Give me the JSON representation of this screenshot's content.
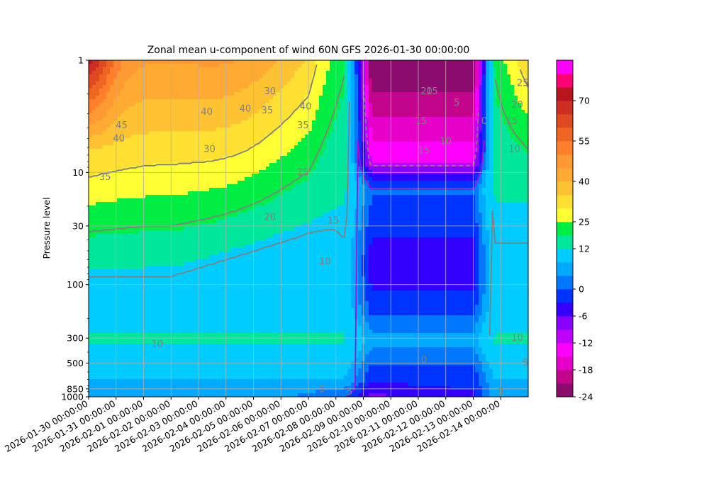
{
  "chart_data": {
    "type": "heatmap",
    "title": "Zonal mean u-component of wind 60N GFS 2026-01-30 00:00:00",
    "xlabel": "",
    "ylabel": "Pressure level",
    "x_ticks": [
      "2026-01-30 00:00:00",
      "2026-01-31 00:00:00",
      "2026-02-01 00:00:00",
      "2026-02-02 00:00:00",
      "2026-02-03 00:00:00",
      "2026-02-04 00:00:00",
      "2026-02-05 00:00:00",
      "2026-02-06 00:00:00",
      "2026-02-07 00:00:00",
      "2026-02-08 00:00:00",
      "2026-02-09 00:00:00",
      "2026-02-10 00:00:00",
      "2026-02-11 00:00:00",
      "2026-02-12 00:00:00",
      "2026-02-13 00:00:00",
      "2026-02-14 00:00:00"
    ],
    "x_range": [
      "2026-01-30 00:00:00",
      "2026-02-15 00:00:00"
    ],
    "y_scale": "log",
    "y_inverted": true,
    "y_range": [
      1000,
      1
    ],
    "y_ticks": [
      "1",
      "10",
      "30",
      "100",
      "300",
      "500",
      "850",
      "1000"
    ],
    "grid": true,
    "colorbar": {
      "ticks": [
        "-24",
        "-18",
        "-12",
        "-6",
        "0",
        "12",
        "25",
        "40",
        "55",
        "70"
      ],
      "levels": [
        -24,
        -21,
        -18,
        -15,
        -12,
        -9,
        -6,
        -3,
        0,
        3,
        6,
        12,
        19,
        25,
        30,
        35,
        40,
        45,
        50,
        55,
        60,
        65,
        70,
        75,
        80
      ],
      "colors": [
        "#8b0a6e",
        "#c2058c",
        "#e600c8",
        "#ff00ff",
        "#c000ff",
        "#8800ff",
        "#3300ff",
        "#0033ff",
        "#0077ff",
        "#00aaff",
        "#00ccff",
        "#00e69a",
        "#00ee44",
        "#ffff33",
        "#ffe033",
        "#ffc233",
        "#ffaa33",
        "#ff9933",
        "#ff7f2a",
        "#ee6622",
        "#e04a22",
        "#cc2e22",
        "#b8161c",
        "#ff0077",
        "#ff00ff"
      ]
    },
    "field_description": "u-wind (m/s) vs time and pressure",
    "contour_labels": [
      {
        "text": "45",
        "date_day": 1.2,
        "p": 3.8
      },
      {
        "text": "40",
        "date_day": 1.1,
        "p": 5.0
      },
      {
        "text": "35",
        "date_day": 0.6,
        "p": 11
      },
      {
        "text": "40",
        "date_day": 4.3,
        "p": 2.9
      },
      {
        "text": "40",
        "date_day": 5.7,
        "p": 2.7
      },
      {
        "text": "35",
        "date_day": 6.5,
        "p": 2.8
      },
      {
        "text": "30",
        "date_day": 6.6,
        "p": 1.9
      },
      {
        "text": "40",
        "date_day": 7.9,
        "p": 2.6
      },
      {
        "text": "35",
        "date_day": 7.8,
        "p": 3.8
      },
      {
        "text": "30",
        "date_day": 4.4,
        "p": 6.2
      },
      {
        "text": "25",
        "date_day": 7.8,
        "p": 10
      },
      {
        "text": "20",
        "date_day": 6.6,
        "p": 25
      },
      {
        "text": "15",
        "date_day": 8.9,
        "p": 27
      },
      {
        "text": "10",
        "date_day": 8.6,
        "p": 62
      },
      {
        "text": "10",
        "date_day": 2.5,
        "p": 340
      },
      {
        "text": "20",
        "date_day": 12.3,
        "p": 1.9
      },
      {
        "text": "15",
        "date_day": 12.5,
        "p": 1.9
      },
      {
        "text": "15",
        "date_day": 12.1,
        "p": 3.5
      },
      {
        "text": "15",
        "date_day": 12.2,
        "p": 6.4
      },
      {
        "text": "10",
        "date_day": 13.0,
        "p": 5.3
      },
      {
        "text": "5",
        "date_day": 13.4,
        "p": 2.4
      },
      {
        "text": "0",
        "date_day": 14.4,
        "p": 3.5
      },
      {
        "text": "25",
        "date_day": 15.8,
        "p": 1.6
      },
      {
        "text": "20",
        "date_day": 15.6,
        "p": 2.5
      },
      {
        "text": "15",
        "date_day": 15.4,
        "p": 3.5
      },
      {
        "text": "10",
        "date_day": 15.5,
        "p": 6.2
      },
      {
        "text": "0",
        "date_day": 12.2,
        "p": 470
      },
      {
        "text": "0",
        "date_day": 15.0,
        "p": 900
      },
      {
        "text": "10",
        "date_day": 15.6,
        "p": 300
      },
      {
        "text": "5",
        "date_day": 15.9,
        "p": 500
      },
      {
        "text": "5",
        "date_day": 8.5,
        "p": 860
      },
      {
        "text": "5",
        "date_day": 9.5,
        "p": 900
      }
    ]
  }
}
